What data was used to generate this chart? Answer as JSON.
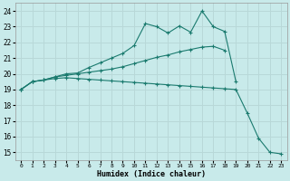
{
  "xlabel": "Humidex (Indice chaleur)",
  "bg_color": "#c8eaea",
  "grid_color": "#b8d8d8",
  "line_color": "#1a7a6e",
  "x_ticks": [
    0,
    1,
    2,
    3,
    4,
    5,
    6,
    7,
    8,
    9,
    10,
    11,
    12,
    13,
    14,
    15,
    16,
    17,
    18,
    19,
    20,
    21,
    22,
    23
  ],
  "y_ticks": [
    15,
    16,
    17,
    18,
    19,
    20,
    21,
    22,
    23,
    24
  ],
  "xlim": [
    -0.5,
    23.5
  ],
  "ylim": [
    14.5,
    24.5
  ],
  "line1_x": [
    0,
    1,
    2,
    3,
    4,
    5,
    6,
    7,
    8,
    9,
    10,
    11,
    12,
    13,
    14,
    15,
    16,
    17,
    18,
    19,
    20,
    21,
    22,
    23
  ],
  "line1_y": [
    19.0,
    19.5,
    19.6,
    19.7,
    19.75,
    19.7,
    19.65,
    19.6,
    19.55,
    19.5,
    19.45,
    19.4,
    19.35,
    19.3,
    19.25,
    19.2,
    19.15,
    19.1,
    19.05,
    19.0,
    17.5,
    15.9,
    15.0,
    14.9
  ],
  "line2_x": [
    0,
    1,
    2,
    3,
    4,
    5,
    6,
    7,
    8,
    9,
    10,
    11,
    12,
    13,
    14,
    15,
    16,
    17,
    18
  ],
  "line2_y": [
    19.0,
    19.5,
    19.6,
    19.8,
    19.9,
    20.0,
    20.1,
    20.2,
    20.3,
    20.45,
    20.65,
    20.85,
    21.05,
    21.2,
    21.4,
    21.55,
    21.7,
    21.75,
    21.5
  ],
  "line3_x": [
    0,
    1,
    2,
    3,
    4,
    5,
    6,
    7,
    8,
    9,
    10,
    11,
    12,
    13,
    14,
    15,
    16,
    17,
    18,
    19
  ],
  "line3_y": [
    19.0,
    19.5,
    19.6,
    19.8,
    20.0,
    20.05,
    20.4,
    20.7,
    21.0,
    21.3,
    21.8,
    23.2,
    23.0,
    22.6,
    23.05,
    22.65,
    24.0,
    23.0,
    22.7,
    19.5
  ]
}
